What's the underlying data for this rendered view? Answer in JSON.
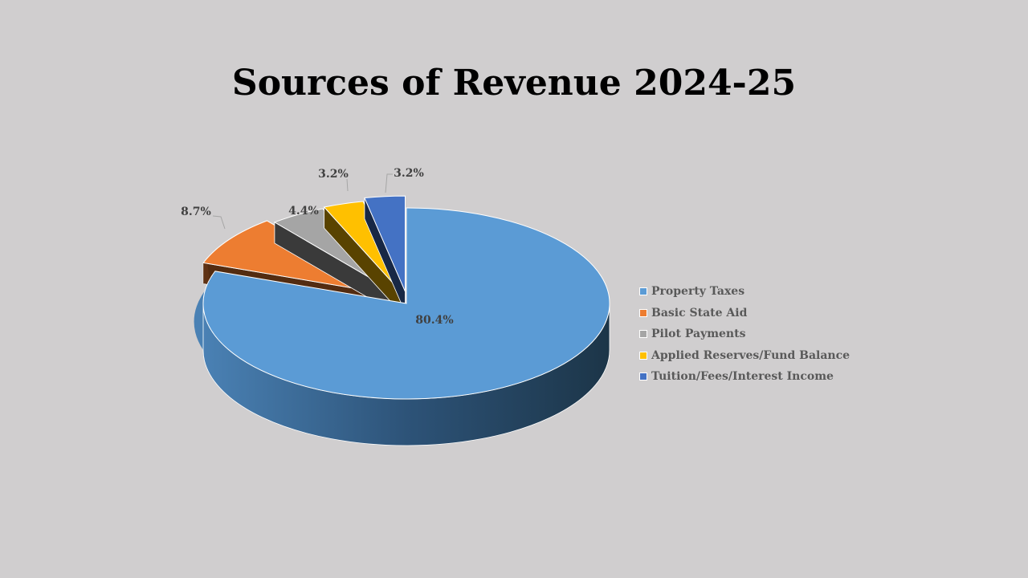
{
  "chart_data": {
    "type": "pie",
    "title": "Sources of Revenue 2024-25",
    "categories": [
      "Property Taxes",
      "Basic State Aid",
      "Pilot Payments",
      "Applied Reserves/Fund Balance",
      "Tuition/Fees/Interest Income"
    ],
    "values": [
      80.4,
      8.7,
      4.4,
      3.2,
      3.2
    ],
    "labels": [
      "80.4%",
      "8.7%",
      "4.4%",
      "3.2%",
      "3.2%"
    ],
    "colors": [
      "#5b9bd5",
      "#ed7d31",
      "#a5a5a5",
      "#ffc000",
      "#4472c4"
    ],
    "legend_position": "right",
    "style": "3d-exploded"
  }
}
